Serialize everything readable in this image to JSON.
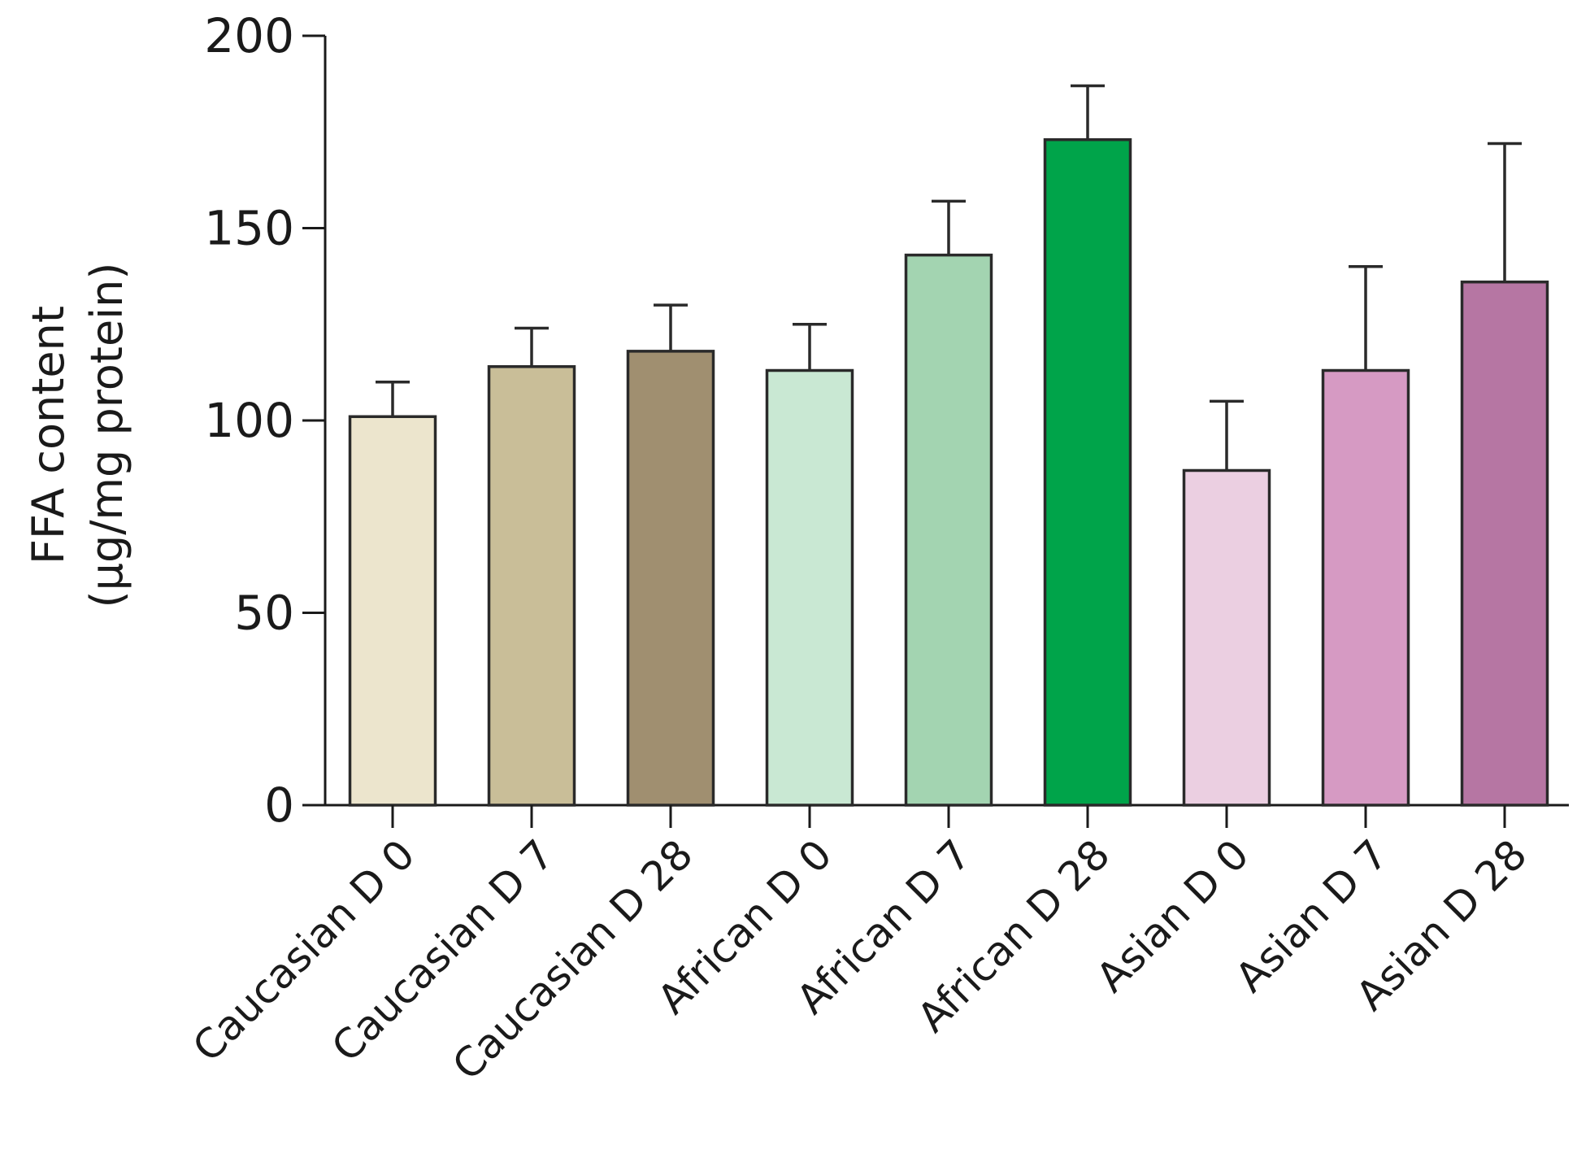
{
  "chart_data": {
    "type": "bar",
    "title": "",
    "xlabel": "",
    "ylabel": [
      "FFA content",
      "(µg/mg protein)"
    ],
    "ylim": [
      0,
      200
    ],
    "yticks": [
      0,
      50,
      100,
      150,
      200
    ],
    "grid": false,
    "categories": [
      "Caucasian D 0",
      "Caucasian D 7",
      "Caucasian D 28",
      "African D 0",
      "African D 7",
      "African D 28",
      "Asian D 0",
      "Asian D 7",
      "Asian D 28"
    ],
    "values": [
      101,
      114,
      118,
      113,
      143,
      173,
      87,
      113,
      136
    ],
    "error_upper": [
      9,
      10,
      12,
      12,
      14,
      14,
      18,
      27,
      36
    ],
    "colors": [
      "#ece5cd",
      "#c9be98",
      "#a08f70",
      "#c9e8d3",
      "#a3d4b1",
      "#00a44a",
      "#ebcfe1",
      "#d69ac3",
      "#b676a3"
    ]
  }
}
